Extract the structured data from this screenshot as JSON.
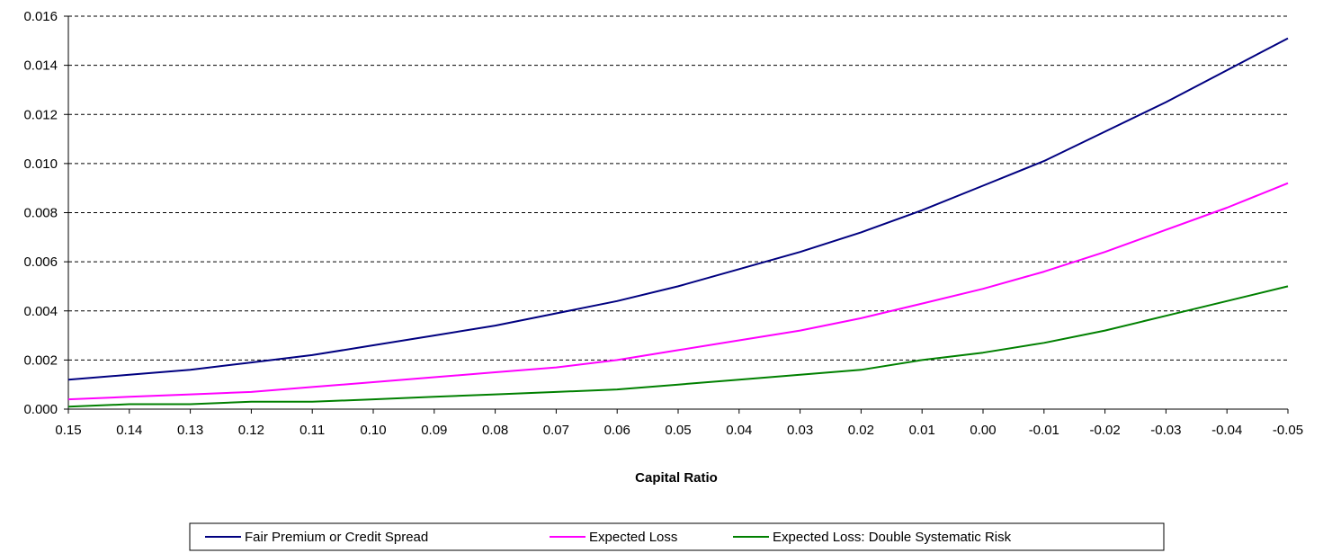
{
  "chart_data": {
    "type": "line",
    "title": "",
    "xlabel": "Capital Ratio",
    "ylabel": "",
    "x_ticks": [
      "0.15",
      "0.14",
      "0.13",
      "0.12",
      "0.11",
      "0.10",
      "0.09",
      "0.08",
      "0.07",
      "0.06",
      "0.05",
      "0.04",
      "0.03",
      "0.02",
      "0.01",
      "0.00",
      "-0.01",
      "-0.02",
      "-0.03",
      "-0.04",
      "-0.05"
    ],
    "y_ticks": [
      "0.000",
      "0.002",
      "0.004",
      "0.006",
      "0.008",
      "0.010",
      "0.012",
      "0.014",
      "0.016"
    ],
    "xlim": [
      0.15,
      -0.05
    ],
    "ylim": [
      0,
      0.016
    ],
    "x_reversed": true,
    "grid": {
      "horizontal": true,
      "style": "dashed"
    },
    "legend_position": "bottom",
    "x": [
      0.15,
      0.14,
      0.13,
      0.12,
      0.11,
      0.1,
      0.09,
      0.08,
      0.07,
      0.06,
      0.05,
      0.04,
      0.03,
      0.02,
      0.01,
      0.0,
      -0.01,
      -0.02,
      -0.03,
      -0.04,
      -0.05
    ],
    "series": [
      {
        "name": "Fair Premium or Credit Spread",
        "color": "#000080",
        "values": [
          0.0012,
          0.0014,
          0.0016,
          0.0019,
          0.0022,
          0.0026,
          0.003,
          0.0034,
          0.0039,
          0.0044,
          0.005,
          0.0057,
          0.0064,
          0.0072,
          0.0081,
          0.0091,
          0.0101,
          0.0113,
          0.0125,
          0.0138,
          0.0151
        ]
      },
      {
        "name": "Expected Loss",
        "color": "#FF00FF",
        "values": [
          0.0004,
          0.0005,
          0.0006,
          0.0007,
          0.0009,
          0.0011,
          0.0013,
          0.0015,
          0.0017,
          0.002,
          0.0024,
          0.0028,
          0.0032,
          0.0037,
          0.0043,
          0.0049,
          0.0056,
          0.0064,
          0.0073,
          0.0082,
          0.0092
        ]
      },
      {
        "name": "Expected Loss: Double Systematic Risk",
        "color": "#008000",
        "values": [
          0.0001,
          0.0002,
          0.0002,
          0.0003,
          0.0003,
          0.0004,
          0.0005,
          0.0006,
          0.0007,
          0.0008,
          0.001,
          0.0012,
          0.0014,
          0.0016,
          0.002,
          0.0023,
          0.0027,
          0.0032,
          0.0038,
          0.0044,
          0.005
        ]
      }
    ]
  }
}
